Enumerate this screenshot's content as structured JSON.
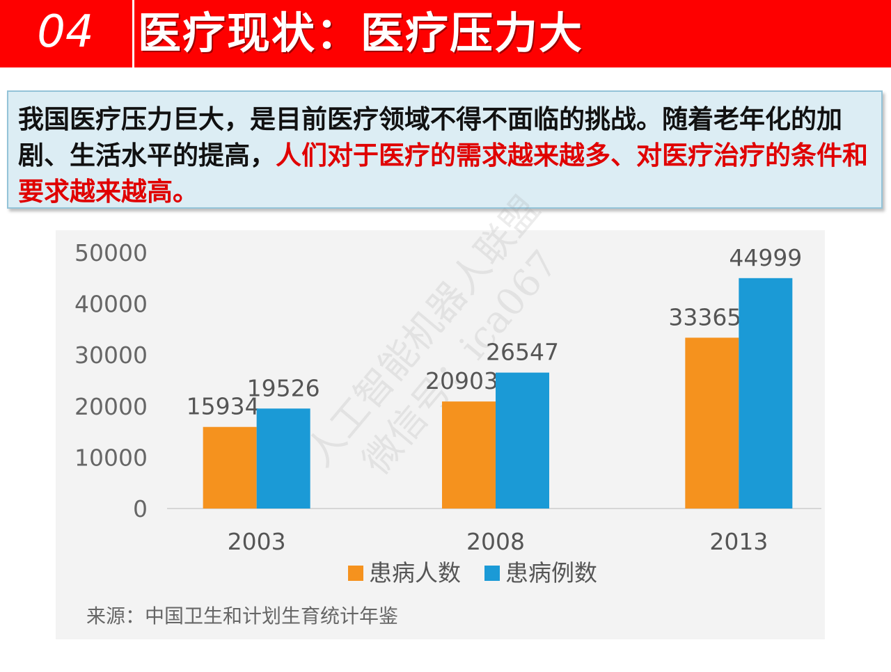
{
  "header": {
    "number": "04",
    "title": "医疗现状：医疗压力大"
  },
  "callout": {
    "text_plain": "我国医疗压力巨大，是目前医疗领域不得不面临的挑战。随着老年化的加剧、生活水平的提高，",
    "text_highlight": "人们对于医疗的需求越来越多、对医疗治疗的条件和要求越来越高。"
  },
  "watermark": {
    "line1": "人工智能机器人联盟",
    "line2": "微信号：ica067"
  },
  "chart_data": {
    "type": "bar",
    "categories": [
      "2003",
      "2008",
      "2013"
    ],
    "series": [
      {
        "name": "患病人数",
        "values": [
          15934,
          20903,
          33365
        ],
        "color": "#f5921e"
      },
      {
        "name": "患病例数",
        "values": [
          19526,
          26547,
          44999
        ],
        "color": "#1b9ad6"
      }
    ],
    "ylim": [
      0,
      50000
    ],
    "yticks": [
      "0",
      "10000",
      "20000",
      "30000",
      "40000",
      "50000"
    ],
    "legend_position": "bottom-center",
    "grid": false,
    "source": "来源：中国卫生和计划生育统计年鉴"
  }
}
